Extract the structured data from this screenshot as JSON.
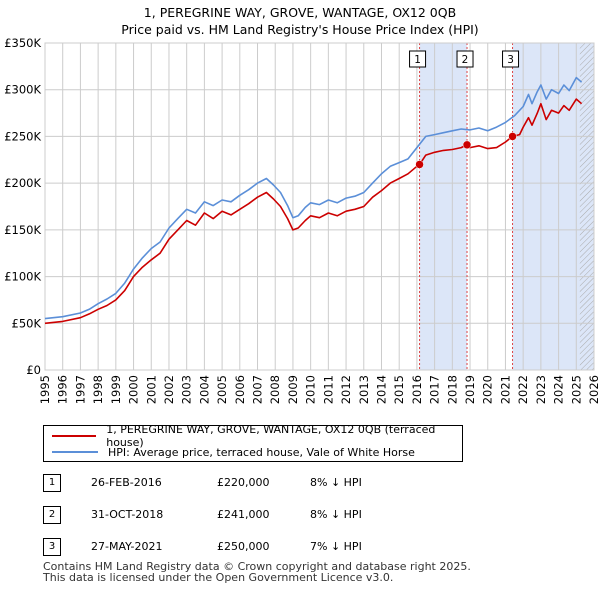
{
  "title_line1": "1, PEREGRINE WAY, GROVE, WANTAGE, OX12 0QB",
  "title_line2": "Price paid vs. HM Land Registry's House Price Index (HPI)",
  "colors": {
    "property": "#cc0000",
    "hpi": "#5b8fd8",
    "band": "#dce6f8",
    "grid": "#cccccc"
  },
  "chart_data": {
    "type": "line",
    "title": "Price paid vs. HM Land Registry's House Price Index (HPI)",
    "xlabel": "",
    "ylabel": "",
    "xlim": [
      1995,
      2026
    ],
    "ylim": [
      0,
      350000
    ],
    "x_ticks": [
      "1995",
      "1996",
      "1997",
      "1998",
      "1999",
      "2000",
      "2001",
      "2002",
      "2003",
      "2004",
      "2005",
      "2006",
      "2007",
      "2008",
      "2009",
      "2010",
      "2011",
      "2012",
      "2013",
      "2014",
      "2015",
      "2016",
      "2017",
      "2018",
      "2019",
      "2020",
      "2021",
      "2022",
      "2023",
      "2024",
      "2025",
      "2026"
    ],
    "y_ticks": [
      {
        "value": 0,
        "label": "£0"
      },
      {
        "value": 50000,
        "label": "£50K"
      },
      {
        "value": 100000,
        "label": "£100K"
      },
      {
        "value": 150000,
        "label": "£150K"
      },
      {
        "value": 200000,
        "label": "£200K"
      },
      {
        "value": 250000,
        "label": "£250K"
      },
      {
        "value": 300000,
        "label": "£300K"
      },
      {
        "value": 350000,
        "label": "£350K"
      }
    ],
    "series": [
      {
        "name": "1, PEREGRINE WAY, GROVE, WANTAGE, OX12 0QB (terraced house)",
        "color": "#cc0000",
        "x": [
          1995.0,
          1996.0,
          1997.0,
          1997.5,
          1998.0,
          1998.5,
          1999.0,
          1999.5,
          2000.0,
          2000.5,
          2001.0,
          2001.5,
          2002.0,
          2002.5,
          2003.0,
          2003.5,
          2004.0,
          2004.5,
          2005.0,
          2005.5,
          2006.0,
          2006.5,
          2007.0,
          2007.5,
          2007.9,
          2008.3,
          2008.7,
          2009.0,
          2009.3,
          2009.7,
          2010.0,
          2010.5,
          2011.0,
          2011.5,
          2012.0,
          2012.5,
          2013.0,
          2013.5,
          2014.0,
          2014.5,
          2015.0,
          2015.5,
          2016.0,
          2016.15,
          2016.5,
          2017.0,
          2017.5,
          2018.0,
          2018.5,
          2018.83,
          2019.0,
          2019.5,
          2020.0,
          2020.5,
          2021.0,
          2021.4,
          2021.8,
          2022.0,
          2022.3,
          2022.5,
          2022.8,
          2023.0,
          2023.3,
          2023.6,
          2024.0,
          2024.3,
          2024.6,
          2025.0,
          2025.3
        ],
        "values": [
          50000,
          52000,
          56000,
          60000,
          65000,
          69000,
          75000,
          85000,
          100000,
          110000,
          118000,
          125000,
          140000,
          150000,
          160000,
          155000,
          168000,
          162000,
          170000,
          166000,
          172000,
          178000,
          185000,
          190000,
          183000,
          175000,
          162000,
          150000,
          152000,
          160000,
          165000,
          163000,
          168000,
          165000,
          170000,
          172000,
          175000,
          185000,
          192000,
          200000,
          205000,
          210000,
          218000,
          220000,
          230000,
          233000,
          235000,
          236000,
          238000,
          241000,
          238000,
          240000,
          237000,
          238000,
          244000,
          250000,
          252000,
          260000,
          270000,
          262000,
          275000,
          285000,
          268000,
          278000,
          275000,
          283000,
          278000,
          290000,
          285000
        ]
      },
      {
        "name": "HPI: Average price, terraced house, Vale of White Horse",
        "color": "#5b8fd8",
        "x": [
          1995.0,
          1996.0,
          1997.0,
          1997.5,
          1998.0,
          1998.5,
          1999.0,
          1999.5,
          2000.0,
          2000.5,
          2001.0,
          2001.5,
          2002.0,
          2002.5,
          2003.0,
          2003.5,
          2004.0,
          2004.5,
          2005.0,
          2005.5,
          2006.0,
          2006.5,
          2007.0,
          2007.5,
          2007.9,
          2008.3,
          2008.7,
          2009.0,
          2009.3,
          2009.7,
          2010.0,
          2010.5,
          2011.0,
          2011.5,
          2012.0,
          2012.5,
          2013.0,
          2013.5,
          2014.0,
          2014.5,
          2015.0,
          2015.5,
          2016.0,
          2016.5,
          2017.0,
          2017.5,
          2018.0,
          2018.5,
          2019.0,
          2019.5,
          2020.0,
          2020.5,
          2021.0,
          2021.5,
          2022.0,
          2022.3,
          2022.5,
          2022.8,
          2023.0,
          2023.3,
          2023.6,
          2024.0,
          2024.3,
          2024.6,
          2025.0,
          2025.3
        ],
        "values": [
          55000,
          57000,
          61000,
          65000,
          71000,
          76000,
          82000,
          93000,
          108000,
          120000,
          130000,
          137000,
          152000,
          162000,
          172000,
          168000,
          180000,
          176000,
          182000,
          180000,
          187000,
          193000,
          200000,
          205000,
          198000,
          190000,
          176000,
          163000,
          165000,
          174000,
          179000,
          177000,
          182000,
          179000,
          184000,
          186000,
          190000,
          200000,
          210000,
          218000,
          222000,
          226000,
          238000,
          250000,
          252000,
          254000,
          256000,
          258000,
          257000,
          259000,
          256000,
          260000,
          265000,
          272000,
          282000,
          295000,
          285000,
          298000,
          305000,
          290000,
          300000,
          296000,
          305000,
          299000,
          313000,
          308000
        ]
      }
    ],
    "annotations": [
      {
        "label": "1",
        "x": 2016.15
      },
      {
        "label": "2",
        "x": 2018.83
      },
      {
        "label": "3",
        "x": 2021.4
      }
    ],
    "shaded_ranges": [
      [
        2016.15,
        2018.83
      ],
      [
        2021.4,
        2026.0
      ]
    ],
    "hatched_from": 2025.2,
    "sale_points": [
      {
        "x": 2016.15,
        "value": 220000
      },
      {
        "x": 2018.83,
        "value": 241000
      },
      {
        "x": 2021.4,
        "value": 250000
      }
    ]
  },
  "legend": {
    "property_label": "1, PEREGRINE WAY, GROVE, WANTAGE, OX12 0QB (terraced house)",
    "hpi_label": "HPI: Average price, terraced house, Vale of White Horse"
  },
  "sales": [
    {
      "num": "1",
      "date": "26-FEB-2016",
      "price": "£220,000",
      "hpi": "8% ↓ HPI"
    },
    {
      "num": "2",
      "date": "31-OCT-2018",
      "price": "£241,000",
      "hpi": "8% ↓ HPI"
    },
    {
      "num": "3",
      "date": "27-MAY-2021",
      "price": "£250,000",
      "hpi": "7% ↓ HPI"
    }
  ],
  "footer_line1": "Contains HM Land Registry data © Crown copyright and database right 2025.",
  "footer_line2": "This data is licensed under the Open Government Licence v3.0."
}
